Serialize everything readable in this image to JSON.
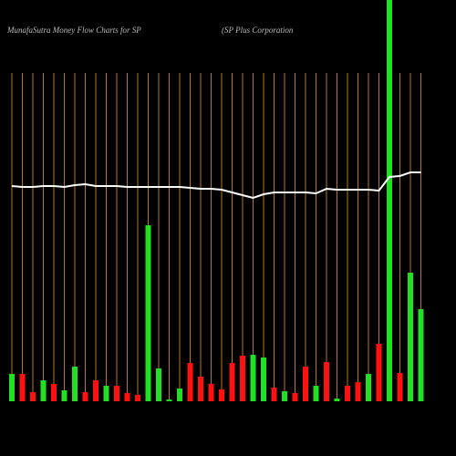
{
  "chart_data": {
    "type": "bar",
    "title": "MunafaSutra  Money Flow  Charts for SP",
    "subtitle": "(SP Plus Corporation",
    "categories": [
      null,
      null,
      null,
      null,
      null,
      null,
      null,
      null,
      null,
      null,
      null,
      null,
      null,
      null,
      null,
      null,
      null,
      null,
      null,
      null,
      null,
      null,
      null,
      null,
      null,
      null,
      null,
      null,
      null,
      null,
      null,
      null,
      null,
      null,
      null,
      null,
      null,
      null,
      null,
      null
    ],
    "ylim": [
      0,
      440
    ],
    "series": [
      {
        "type": "bar",
        "values": [
          30,
          30,
          10,
          23,
          19,
          12,
          38,
          10,
          23,
          17,
          17,
          9,
          7,
          193,
          36,
          2,
          14,
          42,
          27,
          19,
          13,
          42,
          50,
          51,
          48,
          15,
          11,
          9,
          38,
          17,
          43,
          3,
          17,
          21,
          30,
          63,
          440,
          31,
          141,
          101
        ],
        "colors": [
          "#22e022",
          "#ff1111",
          "#ff1111",
          "#22e022",
          "#ff1111",
          "#22e022",
          "#22e022",
          "#ff1111",
          "#ff1111",
          "#22e022",
          "#ff1111",
          "#ff1111",
          "#ff1111",
          "#22e022",
          "#22e022",
          "#22e022",
          "#22e022",
          "#ff1111",
          "#ff1111",
          "#ff1111",
          "#ff1111",
          "#ff1111",
          "#ff1111",
          "#22e022",
          "#22e022",
          "#ff1111",
          "#22e022",
          "#ff1111",
          "#ff1111",
          "#22e022",
          "#ff1111",
          "#22e022",
          "#ff1111",
          "#ff1111",
          "#22e022",
          "#ff1111",
          "#22e022",
          "#ff1111",
          "#22e022",
          "#22e022"
        ]
      },
      {
        "type": "line",
        "color": "#ffffff",
        "values": [
          236,
          235,
          235,
          236,
          236,
          235,
          237,
          238,
          236,
          236,
          236,
          235,
          235,
          235,
          235,
          235,
          235,
          234,
          233,
          233,
          232,
          229,
          226,
          223,
          227,
          229,
          229,
          229,
          229,
          228,
          233,
          232,
          232,
          232,
          232,
          231,
          246,
          247,
          251,
          251
        ]
      }
    ],
    "grid_color": "#b8781a"
  }
}
